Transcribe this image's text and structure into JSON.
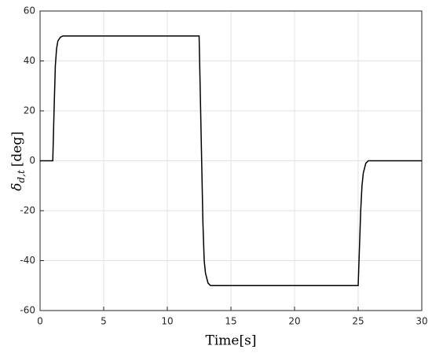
{
  "chart_data": {
    "type": "line",
    "xlabel": "Time[s]",
    "ylabel_symbol": "δ",
    "ylabel_subscript": "d,t",
    "ylabel_unit": "[deg]",
    "xlim": [
      0,
      30
    ],
    "xticks": [
      0,
      5,
      10,
      15,
      20,
      25,
      30
    ],
    "ylim": [
      -60,
      60
    ],
    "yticks": [
      -60,
      -40,
      -20,
      0,
      20,
      40,
      60
    ],
    "grid": true,
    "series": [
      {
        "color": "#000000",
        "x": [
          0,
          1,
          1.1,
          1.2,
          1.3,
          1.4,
          1.6,
          1.8,
          12.5,
          12.6,
          12.7,
          12.8,
          12.9,
          13,
          13.2,
          13.4,
          25,
          25.1,
          25.2,
          25.3,
          25.4,
          25.6,
          25.8,
          30
        ],
        "values": [
          0,
          0,
          20,
          38,
          45,
          48,
          49.5,
          50,
          50,
          25,
          0,
          -25,
          -40,
          -45,
          -49,
          -50,
          -50,
          -35,
          -20,
          -10,
          -5,
          -1,
          0,
          0
        ]
      }
    ]
  }
}
